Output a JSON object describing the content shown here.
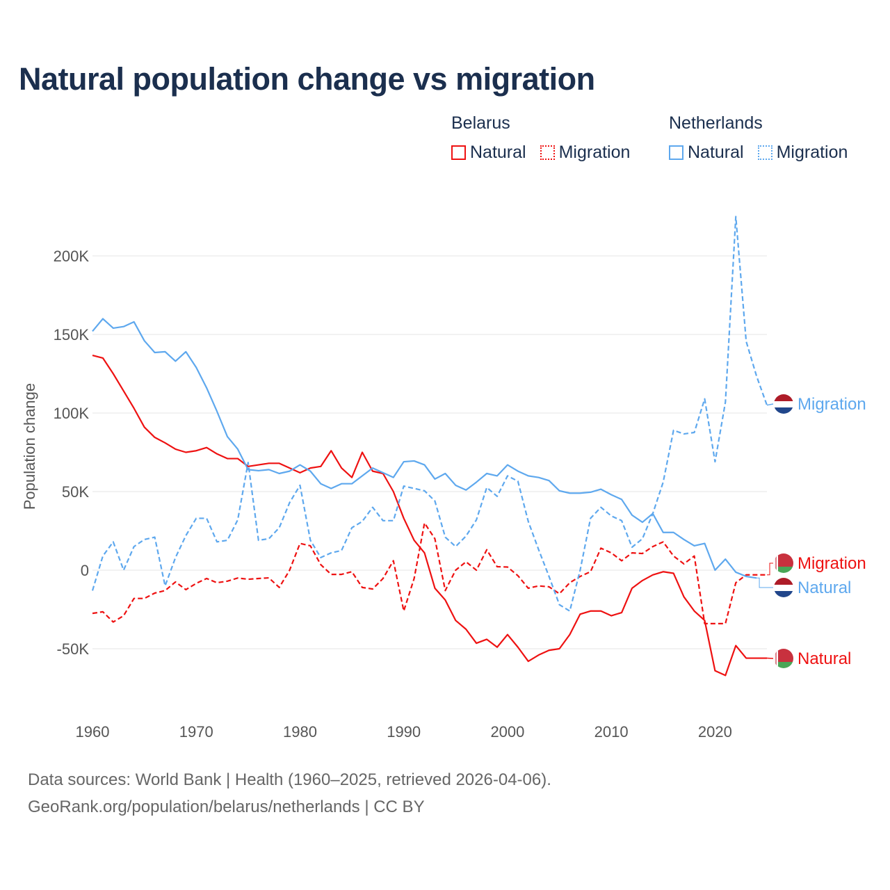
{
  "title": "Natural population change vs migration",
  "legend": {
    "groups": [
      {
        "name": "Belarus",
        "items": [
          {
            "label": "Natural",
            "style": "solid"
          },
          {
            "label": "Migration",
            "style": "dotted"
          }
        ],
        "color": "#ee1111"
      },
      {
        "name": "Netherlands",
        "items": [
          {
            "label": "Natural",
            "style": "solid"
          },
          {
            "label": "Migration",
            "style": "dotted"
          }
        ],
        "color": "#5ea8ee"
      }
    ]
  },
  "footer": {
    "line1": "Data sources: World Bank | Health (1960–2025, retrieved 2026-04-06).",
    "line2": "GeoRank.org/population/belarus/netherlands | CC BY"
  },
  "chart_data": {
    "type": "line",
    "title": "Natural population change vs migration",
    "xlabel": "",
    "ylabel": "Population change",
    "xlim": [
      1960,
      2025
    ],
    "ylim": [
      -80000,
      225000
    ],
    "xticks": [
      1960,
      1970,
      1980,
      1990,
      2000,
      2010,
      2020
    ],
    "yticks": [
      {
        "v": -50000,
        "label": "-50K"
      },
      {
        "v": 0,
        "label": "0"
      },
      {
        "v": 50000,
        "label": "50K"
      },
      {
        "v": 100000,
        "label": "100K"
      },
      {
        "v": 150000,
        "label": "150K"
      },
      {
        "v": 200000,
        "label": "200K"
      }
    ],
    "grid": true,
    "legend_position": "top-right",
    "series": [
      {
        "name": "Belarus Natural",
        "end_label": "Natural",
        "country": "Belarus",
        "color": "#ee1111",
        "dash": false,
        "start": 1960,
        "values": [
          136.7,
          135,
          125,
          114,
          103,
          91,
          84.5,
          81,
          77,
          75,
          76,
          78,
          74,
          71,
          71,
          66,
          67,
          68,
          68,
          65,
          62,
          65,
          66,
          76,
          65,
          59,
          75,
          63,
          61.5,
          50,
          33,
          19,
          11,
          -11.5,
          -19,
          -32,
          -37.6,
          -46.5,
          -44,
          -49,
          -41,
          -49,
          -58,
          -54,
          -51,
          -50,
          -41,
          -28,
          -26,
          -26,
          -29,
          -27,
          -11.5,
          -6.6,
          -3,
          -1,
          -2,
          -17,
          -26,
          -32,
          -64,
          -67,
          -48,
          -56,
          -56,
          -56
        ]
      },
      {
        "name": "Belarus Migration",
        "end_label": "Migration",
        "country": "Belarus",
        "color": "#ee1111",
        "dash": true,
        "start": 1960,
        "values": [
          -27.5,
          -26.5,
          -33,
          -29,
          -18,
          -18,
          -14.6,
          -13,
          -7.5,
          -12.4,
          -8.4,
          -5.3,
          -8,
          -7,
          -5,
          -5.8,
          -5.3,
          -4.9,
          -11,
          0,
          17,
          15.5,
          3.5,
          -2.7,
          -2.7,
          -1,
          -11,
          -12,
          -5.3,
          6,
          -26,
          -5.3,
          30,
          20,
          -13,
          0,
          5.3,
          0,
          13,
          2.2,
          2,
          -3.5,
          -11.5,
          -10,
          -10.6,
          -15,
          -8,
          -4,
          -1,
          14,
          11,
          6,
          11,
          10.6,
          15,
          18,
          9,
          4,
          9,
          -34,
          -34,
          -34,
          -8,
          -3,
          -3,
          -3
        ]
      },
      {
        "name": "Netherlands Natural",
        "end_label": "Natural",
        "country": "Netherlands",
        "color": "#5ea8ee",
        "dash": false,
        "start": 1960,
        "values": [
          152,
          160,
          154,
          155,
          158,
          146,
          138.5,
          139,
          133,
          139,
          129,
          116,
          101,
          85,
          77,
          64,
          63.3,
          64,
          61.5,
          63,
          67,
          63,
          55,
          52,
          55,
          55,
          60,
          65,
          62,
          59,
          69,
          69.5,
          67,
          58,
          61.5,
          54,
          51,
          56,
          61.5,
          60,
          67,
          63,
          60,
          59,
          57,
          50.5,
          49,
          49,
          49.6,
          51.5,
          48,
          45,
          35,
          30.5,
          36,
          24,
          24,
          19.5,
          15.5,
          17,
          0,
          7,
          -1.3,
          -4,
          -5
        ]
      },
      {
        "name": "Netherlands Migration",
        "end_label": "Migration",
        "country": "Netherlands",
        "color": "#5ea8ee",
        "dash": true,
        "start": 1960,
        "values": [
          -13,
          9,
          18,
          0,
          15,
          19.5,
          21,
          -10,
          8,
          22,
          33,
          33,
          18,
          19,
          32,
          68.5,
          19,
          20,
          27,
          43,
          54,
          19,
          8,
          11,
          12.5,
          27,
          31,
          40,
          31.5,
          31.5,
          53.5,
          52,
          50.5,
          44,
          21,
          15,
          21.7,
          32,
          52.6,
          47,
          60,
          56.6,
          31,
          13,
          -4,
          -22,
          -26,
          0,
          33,
          40,
          34.5,
          31.5,
          14.6,
          20,
          36,
          56,
          89,
          86.7,
          87.6,
          109,
          69,
          107,
          225,
          145.6,
          123.5,
          105
        ]
      }
    ],
    "value_unit": "thousands"
  }
}
